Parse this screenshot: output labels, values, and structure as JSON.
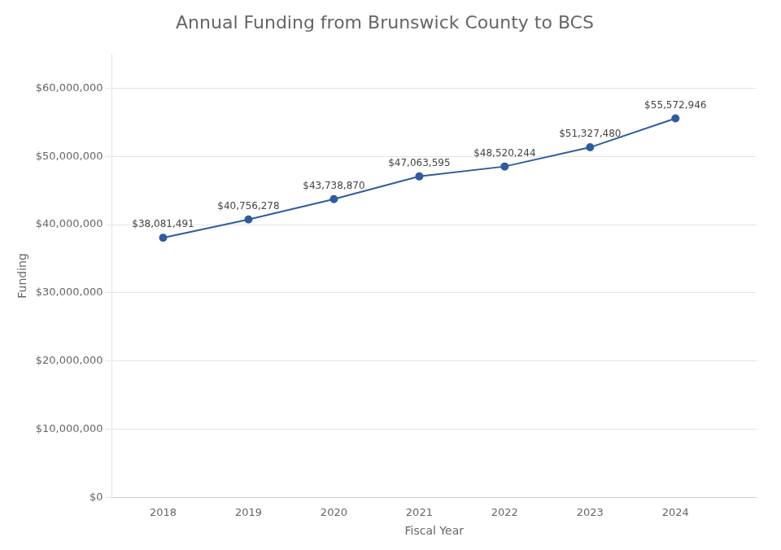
{
  "chart_data": {
    "type": "line",
    "title": "Annual Funding from Brunswick County to BCS",
    "xlabel": "Fiscal Year",
    "ylabel": "Funding",
    "x": [
      2018,
      2019,
      2020,
      2021,
      2022,
      2023,
      2024
    ],
    "values": [
      38081491,
      40756278,
      43738870,
      47063595,
      48520244,
      51327480,
      55572946
    ],
    "value_labels": [
      "$38,081,491",
      "$40,756,278",
      "$43,738,870",
      "$47,063,595",
      "$48,520,244",
      "$51,327,480",
      "$55,572,946"
    ],
    "data_labels": true,
    "color": "#2E5C9E",
    "marker": "circle",
    "line_style": "solid",
    "xlim": [
      2017.4,
      2024.95
    ],
    "xticks": [
      2018,
      2019,
      2020,
      2021,
      2022,
      2023,
      2024
    ],
    "ylim": [
      0,
      65000000
    ],
    "yticks": [
      {
        "value": 0,
        "label": "$0"
      },
      {
        "value": 10000000,
        "label": "$10,000,000"
      },
      {
        "value": 20000000,
        "label": "$20,000,000"
      },
      {
        "value": 30000000,
        "label": "$30,000,000"
      },
      {
        "value": 40000000,
        "label": "$40,000,000"
      },
      {
        "value": 50000000,
        "label": "$50,000,000"
      },
      {
        "value": 60000000,
        "label": "$60,000,000"
      }
    ],
    "grid": "y"
  }
}
